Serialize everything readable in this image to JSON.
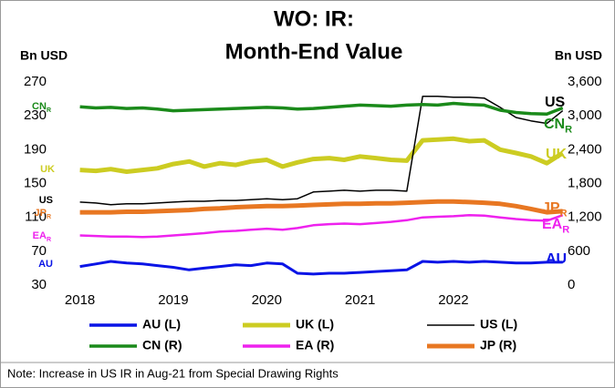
{
  "chart_data": {
    "type": "line",
    "title": [
      "WO: IR:",
      "Month-End Value"
    ],
    "ylabel": "Bn USD",
    "y2label": "Bn USD",
    "note": "Note: Increase in US IR in Aug-21 from Special Drawing Rights",
    "xlim": [
      2017.75,
      2023.3
    ],
    "xticks": [
      2018,
      2019,
      2020,
      2021,
      2022
    ],
    "ylim": [
      30,
      270
    ],
    "yticks": [
      30,
      70,
      110,
      150,
      190,
      230,
      270
    ],
    "y2lim": [
      0,
      3600
    ],
    "y2ticks": [
      0,
      600,
      {
        "value": 1200,
        "label": "1,200"
      },
      {
        "value": 1800,
        "label": "1,800"
      },
      {
        "value": 2400,
        "label": "2,400"
      },
      {
        "value": 3000,
        "label": "3,000"
      },
      {
        "value": 3600,
        "label": "3,600"
      }
    ],
    "x": [
      2018,
      2018.17,
      2018.33,
      2018.5,
      2018.67,
      2018.83,
      2019,
      2019.17,
      2019.33,
      2019.5,
      2019.67,
      2019.83,
      2020,
      2020.17,
      2020.33,
      2020.5,
      2020.67,
      2020.83,
      2021,
      2021.17,
      2021.33,
      2021.5,
      2021.67,
      2021.83,
      2022,
      2022.17,
      2022.33,
      2022.5,
      2022.67,
      2022.83,
      2023,
      2023.17
    ],
    "series": [
      {
        "name": "AU (L)",
        "label": "AU",
        "color": "#0a14e6",
        "values": [
          52,
          55,
          58,
          56,
          55,
          53,
          51,
          48,
          50,
          52,
          54,
          53,
          56,
          55,
          44,
          43,
          44,
          44,
          45,
          46,
          47,
          48,
          58,
          57,
          58,
          57,
          58,
          57,
          56,
          56,
          57,
          57
        ]
      },
      {
        "name": "UK (L)",
        "label": "UK",
        "color": "#cccc22",
        "values": [
          166,
          165,
          167,
          164,
          166,
          168,
          173,
          176,
          170,
          174,
          172,
          176,
          178,
          170,
          175,
          179,
          180,
          178,
          182,
          180,
          178,
          177,
          201,
          202,
          203,
          200,
          201,
          190,
          186,
          182,
          174,
          186
        ]
      },
      {
        "name": "US (L)",
        "label": "US",
        "color": "#000000",
        "values": [
          128,
          127,
          125,
          126,
          126,
          127,
          128,
          129,
          129,
          130,
          130,
          131,
          132,
          131,
          132,
          140,
          141,
          142,
          141,
          142,
          142,
          141,
          253,
          253,
          252,
          252,
          251,
          240,
          228,
          224,
          221,
          236
        ]
      },
      {
        "name": "CN (R)",
        "label": "CN",
        "label_sub": "R",
        "color": "#1a8a1a",
        "axis": "y2",
        "values": [
          3160,
          3140,
          3150,
          3130,
          3140,
          3120,
          3090,
          3100,
          3110,
          3120,
          3130,
          3140,
          3150,
          3140,
          3120,
          3130,
          3150,
          3170,
          3190,
          3180,
          3170,
          3190,
          3200,
          3190,
          3220,
          3200,
          3190,
          3100,
          3060,
          3040,
          3030,
          3140
        ]
      },
      {
        "name": "EA (R)",
        "label": "EA",
        "label_sub": "R",
        "color": "#ee22ee",
        "axis": "y2",
        "values": [
          880,
          870,
          860,
          860,
          850,
          860,
          880,
          900,
          920,
          950,
          960,
          980,
          1000,
          980,
          1010,
          1060,
          1080,
          1090,
          1080,
          1100,
          1120,
          1150,
          1200,
          1210,
          1220,
          1240,
          1230,
          1200,
          1170,
          1150,
          1140,
          1240
        ]
      },
      {
        "name": "JP (R)",
        "label": "JP",
        "label_sub": "R",
        "color": "#e87722",
        "axis": "y2",
        "values": [
          1290,
          1290,
          1290,
          1300,
          1300,
          1310,
          1320,
          1330,
          1350,
          1360,
          1380,
          1390,
          1400,
          1400,
          1410,
          1420,
          1430,
          1440,
          1440,
          1450,
          1450,
          1460,
          1470,
          1480,
          1480,
          1470,
          1460,
          1440,
          1400,
          1350,
          1290,
          1310
        ]
      }
    ]
  }
}
